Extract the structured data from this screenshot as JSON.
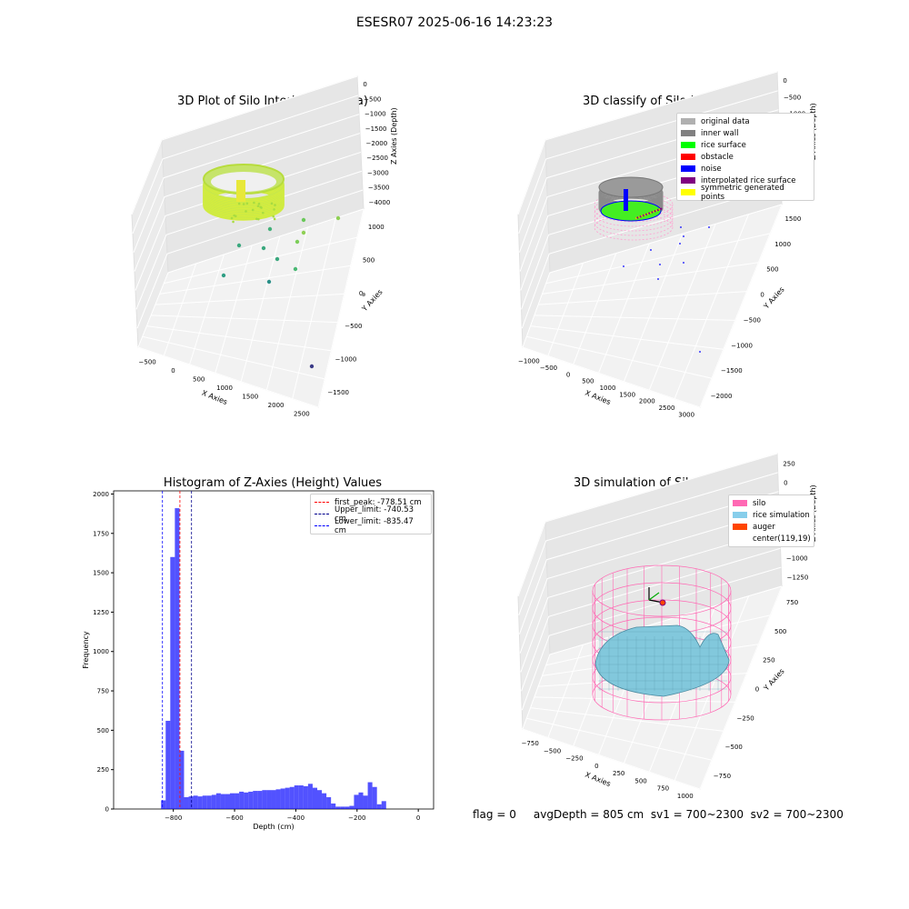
{
  "figure": {
    "suptitle": "ESESR07 2025-06-16 14:23:23",
    "footer": "flag = 0     avgDepth = 805 cm  sv1 = 700~2300  sv2 = 700~2300"
  },
  "panels": {
    "raw": {
      "title": "3D Plot of Silo Interior(row data)",
      "xlabel": "X Axies",
      "ylabel": "Y Axies",
      "zlabel": "Z Axies (Depth)",
      "xticks": [
        "−500",
        "0",
        "500",
        "1000",
        "1500",
        "2000",
        "2500"
      ],
      "yticks": [
        "1000",
        "500",
        "0",
        "−500",
        "−1000",
        "−1500"
      ],
      "zticks": [
        "0",
        "−500",
        "−1000",
        "−1500",
        "−2000",
        "−2500",
        "−3000",
        "−3500",
        "−4000"
      ]
    },
    "classify": {
      "title": "3D classify of Silo Interior",
      "xlabel": "X Axies",
      "ylabel": "Y Axies",
      "zlabel": "Z Axies (Depth)",
      "xticks": [
        "−1000",
        "−500",
        "0",
        "500",
        "1000",
        "1500",
        "2000",
        "2500",
        "3000"
      ],
      "yticks": [
        "1500",
        "1000",
        "500",
        "0",
        "−500",
        "−1000",
        "−1500",
        "−2000"
      ],
      "zticks": [
        "0",
        "−500",
        "−1000",
        "−1500",
        "−2000",
        "−2500",
        "−3000",
        "−3500"
      ],
      "legend": [
        {
          "label": "original data",
          "color": "#b0b0b0"
        },
        {
          "label": "inner wall",
          "color": "#808080"
        },
        {
          "label": "rice surface",
          "color": "#00ff00"
        },
        {
          "label": "obstacle",
          "color": "#ff0000"
        },
        {
          "label": "noise",
          "color": "#0000ff"
        },
        {
          "label": "interpolated rice surface",
          "color": "#800080"
        },
        {
          "label": "symmetric generated points",
          "color": "#ffff00"
        }
      ]
    },
    "simulation": {
      "title": "3D simulation of Silo Interior",
      "xlabel": "X Axies",
      "ylabel": "Y Axies",
      "zlabel": "Z Axies (Depth)",
      "xticks": [
        "−750",
        "−500",
        "−250",
        "0",
        "250",
        "500",
        "750",
        "1000"
      ],
      "yticks": [
        "750",
        "500",
        "250",
        "0",
        "−250",
        "−500",
        "−750"
      ],
      "zticks": [
        "250",
        "0",
        "−250",
        "−500",
        "−750",
        "−1000",
        "−1250"
      ],
      "legend": [
        {
          "label": "silo",
          "color": "#ff69b4"
        },
        {
          "label": "rice simulation",
          "color": "#87ceeb"
        },
        {
          "label": "auger",
          "color": "#ff4500"
        },
        {
          "label": "center(119,19)",
          "color": "#ffffff"
        }
      ]
    }
  },
  "chart_data": {
    "type": "bar",
    "title": "Histogram of Z-Axies (Height) Values",
    "xlabel": "Depth (cm)",
    "ylabel": "Frequency",
    "xlim": [
      -995,
      50
    ],
    "ylim": [
      0,
      2020
    ],
    "xticks": [
      -800,
      -600,
      -400,
      -200,
      0
    ],
    "yticks": [
      0,
      250,
      500,
      750,
      1000,
      1250,
      1500,
      1750,
      2000
    ],
    "bar_color": "#0000ff",
    "bin_width": 15,
    "bin_starts": [
      -840,
      -825,
      -810,
      -795,
      -780,
      -765,
      -750,
      -735,
      -720,
      -705,
      -690,
      -675,
      -660,
      -645,
      -630,
      -615,
      -600,
      -585,
      -570,
      -555,
      -540,
      -525,
      -510,
      -495,
      -480,
      -465,
      -450,
      -435,
      -420,
      -405,
      -390,
      -375,
      -360,
      -345,
      -330,
      -315,
      -300,
      -285,
      -270,
      -255,
      -240,
      -225,
      -210,
      -195,
      -180,
      -165,
      -150,
      -135,
      -120,
      -105,
      -90,
      -75,
      -60,
      -45,
      -30,
      -15
    ],
    "values": [
      55,
      560,
      1600,
      1910,
      370,
      75,
      80,
      85,
      80,
      85,
      85,
      90,
      100,
      95,
      95,
      100,
      100,
      110,
      105,
      110,
      115,
      115,
      120,
      120,
      120,
      125,
      130,
      135,
      140,
      150,
      150,
      145,
      160,
      135,
      120,
      100,
      75,
      35,
      15,
      15,
      15,
      20,
      90,
      105,
      85,
      170,
      140,
      30,
      50,
      0,
      0,
      0,
      0,
      0,
      0,
      0
    ],
    "vlines": [
      {
        "x": -778.51,
        "label": "first_peak: -778.51 cm",
        "color": "#ff0000"
      },
      {
        "x": -740.53,
        "label": "Upper_limit: -740.53 cm",
        "color": "#00008b"
      },
      {
        "x": -835.47,
        "label": "Lower_limit: -835.47 cm",
        "color": "#0000ff"
      }
    ],
    "legend_position": "top-right"
  }
}
